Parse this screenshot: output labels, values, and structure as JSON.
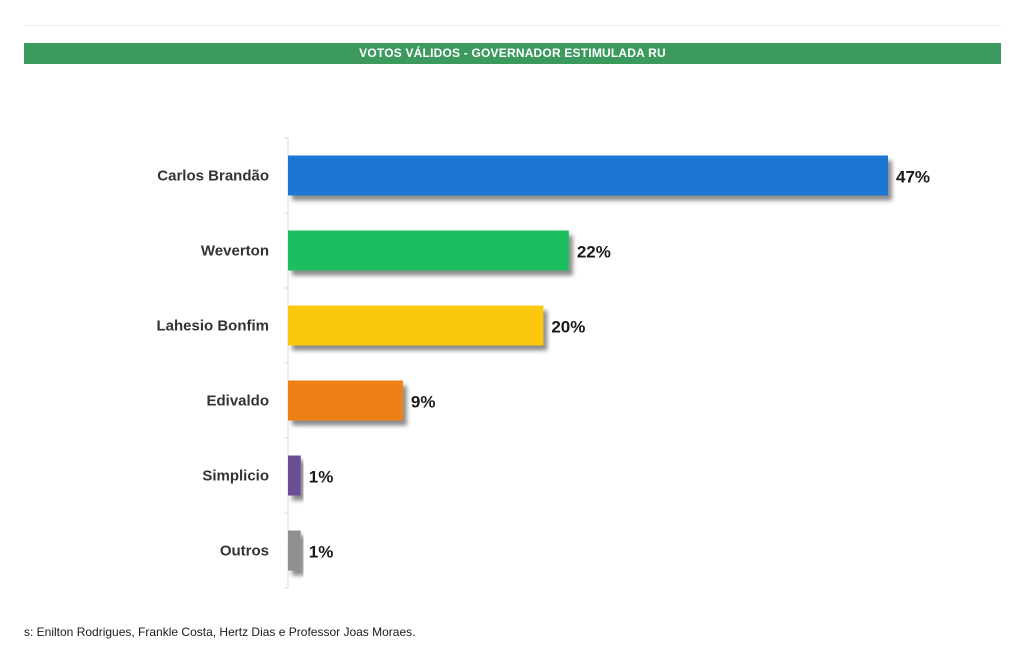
{
  "header": {
    "title": "VOTOS VÁLIDOS - GOVERNADOR ESTIMULADA RU"
  },
  "footer": {
    "text": "s: Enilton Rodrigues, Frankle Costa, Hertz Dias e Professor Joas Moraes."
  },
  "chart_data": {
    "type": "bar",
    "orientation": "horizontal",
    "title": "VOTOS VÁLIDOS - GOVERNADOR ESTIMULADA RU",
    "categories": [
      "Carlos Brandão",
      "Weverton",
      "Lahesio Bonfim",
      "Edivaldo",
      "Simplicio",
      "Outros"
    ],
    "values": [
      47,
      22,
      20,
      9,
      1,
      1
    ],
    "value_labels": [
      "47%",
      "22%",
      "20%",
      "9%",
      "1%",
      "1%"
    ],
    "colors": [
      "#1f77d4",
      "#1cbf5e",
      "#fcc80c",
      "#f07f14",
      "#6b4f96",
      "#8f8f8f"
    ],
    "unit": "%",
    "grid": false,
    "legend": "none"
  }
}
